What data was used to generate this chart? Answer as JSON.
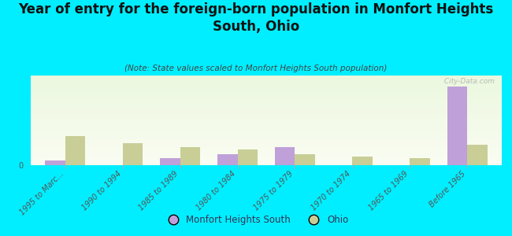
{
  "title": "Year of entry for the foreign-born population in Monfort Heights\nSouth, Ohio",
  "subtitle": "(Note: State values scaled to Monfort Heights South population)",
  "categories": [
    "1995 to Marc...",
    "1990 to 1994",
    "1985 to 1989",
    "1980 to 1984",
    "1975 to 1979",
    "1970 to 1974",
    "1965 to 1969",
    "Before 1965"
  ],
  "monfort_values": [
    2,
    0,
    3,
    5,
    8,
    0,
    0,
    35
  ],
  "ohio_values": [
    13,
    10,
    8,
    7,
    5,
    4,
    3,
    9
  ],
  "monfort_color": "#c0a0d8",
  "ohio_color": "#c8ce96",
  "bg_color": "#00eeff",
  "bar_width": 0.35,
  "ylim": [
    0,
    40
  ],
  "watermark": " City-Data.com",
  "title_fontsize": 12,
  "subtitle_fontsize": 7.5,
  "legend_fontsize": 8.5,
  "tick_fontsize": 7
}
